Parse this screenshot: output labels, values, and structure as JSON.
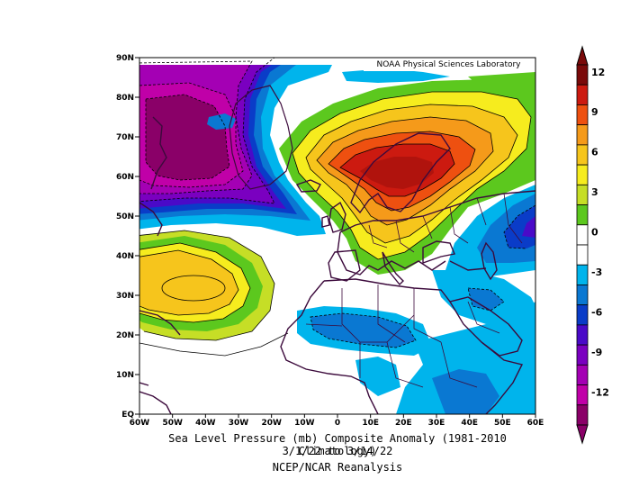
{
  "credit": "NOAA Physical Sciences Laboratory",
  "caption": {
    "line1": "Sea Level Pressure (mb) Composite Anomaly (1981-2010 Climatology)",
    "line2": "3/1/22  to 3/14/22",
    "line3": "NCEP/NCAR Reanalysis"
  },
  "map": {
    "variable": "Sea Level Pressure Anomaly",
    "units": "mb",
    "lon_range": [
      -60,
      60
    ],
    "lat_range": [
      0,
      90
    ],
    "lat_ticks": [
      "90N",
      "80N",
      "70N",
      "60N",
      "50N",
      "40N",
      "30N",
      "20N",
      "10N",
      "EQ"
    ],
    "lon_ticks": [
      "60W",
      "50W",
      "40W",
      "30W",
      "20W",
      "10W",
      "0",
      "10E",
      "20E",
      "30E",
      "40E",
      "50E",
      "60E"
    ],
    "features": [
      {
        "type": "high",
        "center_lon": 15,
        "center_lat": 62,
        "value": 12
      },
      {
        "type": "high",
        "center_lon": -40,
        "center_lat": 31,
        "value": 6
      },
      {
        "type": "low",
        "center_lon": -45,
        "center_lat": 72,
        "value": -12
      },
      {
        "type": "low",
        "center_lon": 55,
        "center_lat": 46,
        "value": -6
      },
      {
        "type": "low",
        "center_lon": 10,
        "center_lat": 22,
        "value": -3
      },
      {
        "type": "low",
        "center_lon": 35,
        "center_lat": 10,
        "value": -3
      }
    ]
  },
  "colorbar": {
    "labels": [
      "12",
      "9",
      "6",
      "3",
      "0",
      "-3",
      "-6",
      "-9",
      "-12"
    ],
    "colors": [
      "#7a0a0a",
      "#cc1a10",
      "#ee5010",
      "#f59a1a",
      "#f6c51c",
      "#f6ec1e",
      "#c6de26",
      "#5cc81e",
      "#ffffff",
      "#ffffff",
      "#00b4ec",
      "#0a78d2",
      "#0a3cc8",
      "#4a0ac8",
      "#7a00c0",
      "#a400b4",
      "#c000a8",
      "#8a0068"
    ]
  }
}
